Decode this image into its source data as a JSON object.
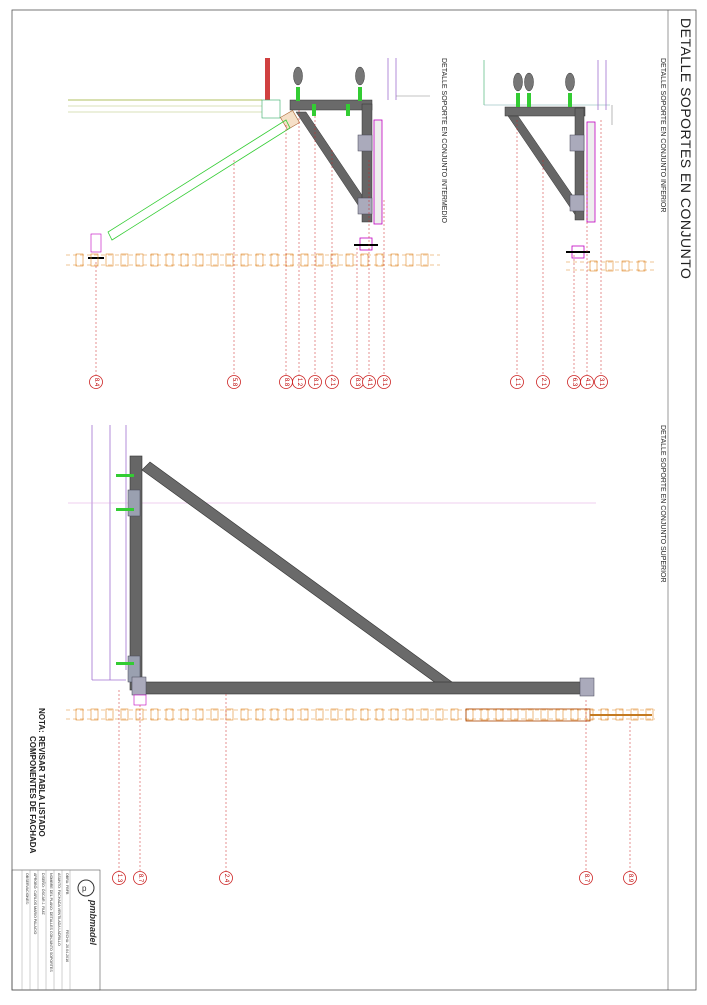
{
  "sheet": {
    "title": "DETALLE SOPORTES EN CONJUNTO"
  },
  "views": {
    "inferior": {
      "title": "DETALLE SOPORTE EN CONJUNTO INFERIOR"
    },
    "intermedio": {
      "title": "DETALLE SOPORTE EN CONJUNTO INTERMEDIO"
    },
    "superior": {
      "title": "DETALLE SOPORTE EN CONJUNTO SUPERIOR"
    }
  },
  "callouts": {
    "inferior": [
      "1.1",
      "2.1",
      "6.3",
      "4.1",
      "3.1"
    ],
    "intermedio": [
      "8.4",
      "5.8",
      "8.8",
      "1.2",
      "8.1",
      "2.1",
      "8.3",
      "4.1",
      "3.1"
    ],
    "superior": [
      "1.3",
      "8.7",
      "2.4",
      "8.7",
      "8.9"
    ]
  },
  "note": {
    "label": "NOTA:",
    "line1": "REVISAR TABLA LISTADO",
    "line2": "COMPONENTES DE FACHADA"
  },
  "title_block": {
    "logo_text": "pmbmadel",
    "obra": "OBRA:  FBFB",
    "fecha": "FECHA: 20.04.2016",
    "asunto": "ASUNTO:  FACHADA VENTILADA LADRILLO",
    "nombre": "NOMBRE DEL PLANO: DETALLES CONJUNTO SOPORTES",
    "dibujo": "DISEÑO: ÓSCAR J. RUIZ",
    "aprobo": "APROBÓ: CARLOS MARIO PALACIO",
    "observaciones": "OBSERVACIONES:"
  },
  "colors": {
    "steel": "#5a5a5a",
    "steel_light": "#8a8a8a",
    "callout": "#cc2222",
    "brick": "#e08a2a",
    "anchor": "#33cc33",
    "magenta": "#c000c0",
    "blue": "#4455cc",
    "frame": "#555555"
  }
}
